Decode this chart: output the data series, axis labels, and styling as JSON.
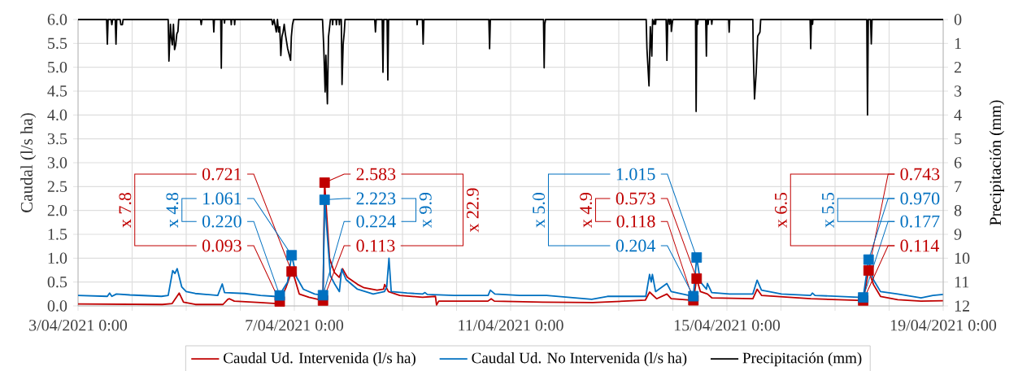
{
  "chart_data": {
    "type": "line",
    "ylabel": "Caudal (l/s ha)",
    "y2label": "Precipitación (mm)",
    "xlim": [
      "2021-04-03",
      "2021-04-19"
    ],
    "xticks": [
      {
        "value": "2021-04-03",
        "label": "3/04/2021 0:00"
      },
      {
        "value": "2021-04-04",
        "label": null
      },
      {
        "value": "2021-04-05",
        "label": null
      },
      {
        "value": "2021-04-06",
        "label": null
      },
      {
        "value": "2021-04-07",
        "label": "7/04/2021 0:00"
      },
      {
        "value": "2021-04-08",
        "label": null
      },
      {
        "value": "2021-04-09",
        "label": null
      },
      {
        "value": "2021-04-10",
        "label": null
      },
      {
        "value": "2021-04-11",
        "label": "11/04/2021 0:00"
      },
      {
        "value": "2021-04-12",
        "label": null
      },
      {
        "value": "2021-04-13",
        "label": null
      },
      {
        "value": "2021-04-14",
        "label": null
      },
      {
        "value": "2021-04-15",
        "label": "15/04/2021 0:00"
      },
      {
        "value": "2021-04-16",
        "label": null
      },
      {
        "value": "2021-04-17",
        "label": null
      },
      {
        "value": "2021-04-18",
        "label": null
      },
      {
        "value": "2021-04-19",
        "label": "19/04/2021 0:00"
      }
    ],
    "ylim": [
      0,
      6
    ],
    "yticks": [
      {
        "value": 0,
        "label": "0.0"
      },
      0.5,
      {
        "value": 1,
        "label": "1.0"
      },
      1.5,
      {
        "value": 2,
        "label": "2.0"
      },
      2.5,
      {
        "value": 3,
        "label": "3.0"
      },
      3.5,
      {
        "value": 4,
        "label": "4.0"
      },
      4.5,
      {
        "value": 5,
        "label": "5.0"
      },
      5.5,
      {
        "value": 6,
        "label": "6.0"
      }
    ],
    "y2lim": [
      12,
      0
    ],
    "y2ticks": [
      0,
      1,
      2,
      3,
      4,
      5,
      6,
      7,
      8,
      9,
      10,
      11,
      12
    ],
    "grid": true,
    "legend": "bottom",
    "annotations": [
      "x 7.8",
      "x 4.8",
      "x 22.9",
      "x 9.9",
      "x 4.9",
      "x 5.0",
      "x 6.5",
      "x 5.5"
    ],
    "series": [
      {
        "name": "Caudal Ud. Intervenida (l/s ha)",
        "color": "#c00000",
        "x": [
          "2021-04-03T00:00",
          "2021-04-04T13:26",
          "2021-04-04T17:46",
          "2021-04-04T20:53",
          "2021-04-04T22:48",
          "2021-04-05T04:05",
          "2021-04-05T16:19",
          "2021-04-05T18:29",
          "2021-04-05T19:12",
          "2021-04-05T21:22",
          "2021-04-06T08:53",
          "2021-04-06T16:05",
          "2021-04-06T17:31",
          "2021-04-06T20:24",
          "2021-04-06T22:48",
          "2021-04-07T00:00",
          "2021-04-07T02:10",
          "2021-04-07T06:29",
          "2021-04-07T12:43",
          "2021-04-07T13:26",
          "2021-04-07T15:36",
          "2021-04-07T17:46",
          "2021-04-07T19:55",
          "2021-04-07T21:22",
          "2021-04-07T23:31",
          "2021-04-08T04:05",
          "2021-04-08T06:58",
          "2021-04-08T12:43",
          "2021-04-08T15:36",
          "2021-04-08T16:05",
          "2021-04-08T17:46",
          "2021-04-08T22:48",
          "2021-04-09T08:53",
          "2021-04-09T14:38",
          "2021-04-09T15:07",
          "2021-04-09T16:05",
          "2021-04-09T23:17",
          "2021-04-10T13:55",
          "2021-04-10T15:22",
          "2021-04-10T16:48",
          "2021-04-11T14:10",
          "2021-04-12T12:29",
          "2021-04-13T11:46",
          "2021-04-13T13:41",
          "2021-04-13T16:48",
          "2021-04-13T21:22",
          "2021-04-13T23:17",
          "2021-04-14T09:07",
          "2021-04-14T10:34",
          "2021-04-14T12:14",
          "2021-04-14T15:22",
          "2021-04-14T17:17",
          "2021-04-15T11:31",
          "2021-04-15T13:26",
          "2021-04-15T15:22",
          "2021-04-16T13:12",
          "2021-04-17T12:29",
          "2021-04-17T14:53",
          "2021-04-17T17:02",
          "2021-04-17T20:10",
          "2021-04-18T03:50",
          "2021-04-18T14:10",
          "2021-04-19T00:00"
        ],
        "values": [
          0.04,
          0.03,
          0.05,
          0.27,
          0.08,
          0.03,
          0.03,
          0.14,
          0.15,
          0.1,
          0.07,
          0.05,
          0.093,
          0.4,
          0.721,
          0.6,
          0.25,
          0.18,
          0.113,
          2.583,
          1.0,
          0.7,
          0.6,
          0.78,
          0.6,
          0.45,
          0.38,
          0.33,
          0.35,
          0.45,
          0.3,
          0.22,
          0.18,
          0.2,
          0.02,
          0.1,
          0.1,
          0.1,
          0.15,
          0.1,
          0.08,
          0.07,
          0.12,
          0.29,
          0.15,
          0.25,
          0.15,
          0.118,
          0.573,
          0.3,
          0.25,
          0.17,
          0.15,
          0.35,
          0.22,
          0.15,
          0.114,
          0.743,
          0.45,
          0.2,
          0.13,
          0.1,
          0.11
        ]
      },
      {
        "name": "Caudal Ud. No Intervenida (l/s ha)",
        "color": "#0070c0",
        "x": [
          "2021-04-03T00:00",
          "2021-04-03T13:00",
          "2021-04-03T14:00",
          "2021-04-03T15:00",
          "2021-04-03T17:00",
          "2021-04-03T23:00",
          "2021-04-04T13:00",
          "2021-04-04T16:00",
          "2021-04-04T18:00",
          "2021-04-04T19:00",
          "2021-04-04T20:00",
          "2021-04-04T22:00",
          "2021-04-05T00:00",
          "2021-04-05T04:00",
          "2021-04-05T14:00",
          "2021-04-05T16:00",
          "2021-04-05T17:00",
          "2021-04-06T02:00",
          "2021-04-06T09:00",
          "2021-04-06T15:00",
          "2021-04-06T17:31",
          "2021-04-06T19:00",
          "2021-04-06T21:00",
          "2021-04-06T22:48",
          "2021-04-07T01:00",
          "2021-04-07T04:00",
          "2021-04-07T09:00",
          "2021-04-07T12:43",
          "2021-04-07T13:26",
          "2021-04-07T16:00",
          "2021-04-07T18:00",
          "2021-04-07T20:00",
          "2021-04-07T21:00",
          "2021-04-07T23:00",
          "2021-04-08T04:00",
          "2021-04-08T11:00",
          "2021-04-08T16:00",
          "2021-04-08T17:00",
          "2021-04-08T18:00",
          "2021-04-08T19:00",
          "2021-04-09T02:00",
          "2021-04-09T09:00",
          "2021-04-09T10:00",
          "2021-04-09T11:00",
          "2021-04-09T23:00",
          "2021-04-10T14:00",
          "2021-04-10T15:00",
          "2021-04-10T17:00",
          "2021-04-11T04:00",
          "2021-04-11T16:00",
          "2021-04-12T12:00",
          "2021-04-12T19:00",
          "2021-04-13T12:00",
          "2021-04-13T13:40",
          "2021-04-13T14:25",
          "2021-04-13T14:55",
          "2021-04-13T16:20",
          "2021-04-13T21:20",
          "2021-04-13T23:15",
          "2021-04-14T07:10",
          "2021-04-14T09:07",
          "2021-04-14T10:34",
          "2021-04-14T12:15",
          "2021-04-14T14:55",
          "2021-04-14T15:20",
          "2021-04-14T17:15",
          "2021-04-15T01:10",
          "2021-04-15T11:30",
          "2021-04-15T13:25",
          "2021-04-15T15:20",
          "2021-04-16T00:15",
          "2021-04-16T13:10",
          "2021-04-16T13:55",
          "2021-04-16T15:05",
          "2021-04-17T12:29",
          "2021-04-17T14:53",
          "2021-04-17T17:00",
          "2021-04-17T20:10",
          "2021-04-18T03:50",
          "2021-04-18T14:10",
          "2021-04-18T19:25",
          "2021-04-19T00:00"
        ],
        "values": [
          0.22,
          0.2,
          0.27,
          0.2,
          0.25,
          0.23,
          0.2,
          0.22,
          0.74,
          0.68,
          0.78,
          0.4,
          0.3,
          0.26,
          0.22,
          0.46,
          0.28,
          0.26,
          0.22,
          0.2,
          0.22,
          0.35,
          0.5,
          1.061,
          0.6,
          0.35,
          0.25,
          0.224,
          2.223,
          0.63,
          0.45,
          0.3,
          0.77,
          0.55,
          0.35,
          0.25,
          0.3,
          0.4,
          1.0,
          0.3,
          0.27,
          0.25,
          0.28,
          0.24,
          0.22,
          0.22,
          0.33,
          0.25,
          0.22,
          0.22,
          0.14,
          0.2,
          0.2,
          0.66,
          0.5,
          0.66,
          0.3,
          0.47,
          0.3,
          0.22,
          0.204,
          1.015,
          0.5,
          0.35,
          0.47,
          0.28,
          0.25,
          0.25,
          0.54,
          0.33,
          0.25,
          0.22,
          0.27,
          0.22,
          0.177,
          0.97,
          0.55,
          0.3,
          0.25,
          0.17,
          0.22,
          0.24
        ]
      },
      {
        "name": "Precipitación (mm)",
        "color": "#000000",
        "axis": "y2",
        "x": [
          "2021-04-03T00:00",
          "2021-04-03T12:40",
          "2021-04-03T13:00",
          "2021-04-03T13:20",
          "2021-04-03T14:40",
          "2021-04-03T15:00",
          "2021-04-03T15:20",
          "2021-04-03T16:30",
          "2021-04-03T16:50",
          "2021-04-03T17:10",
          "2021-04-03T18:40",
          "2021-04-03T19:00",
          "2021-04-03T19:40",
          "2021-04-03T20:00",
          "2021-04-04T16:00",
          "2021-04-04T16:20",
          "2021-04-04T17:00",
          "2021-04-04T17:20",
          "2021-04-04T17:50",
          "2021-04-04T18:20",
          "2021-04-04T18:50",
          "2021-04-04T19:20",
          "2021-04-04T19:50",
          "2021-04-04T20:20",
          "2021-04-04T20:40",
          "2021-04-05T06:20",
          "2021-04-05T06:40",
          "2021-04-05T07:00",
          "2021-04-05T12:00",
          "2021-04-05T12:15",
          "2021-04-05T12:30",
          "2021-04-05T15:20",
          "2021-04-05T15:35",
          "2021-04-05T15:50",
          "2021-04-05T16:50",
          "2021-04-05T17:00",
          "2021-04-05T17:10",
          "2021-04-05T19:50",
          "2021-04-05T20:00",
          "2021-04-05T20:10",
          "2021-04-05T21:20",
          "2021-04-05T21:30",
          "2021-04-05T21:40",
          "2021-04-06T14:00",
          "2021-04-06T14:20",
          "2021-04-06T15:00",
          "2021-04-06T16:00",
          "2021-04-06T16:30",
          "2021-04-06T17:00",
          "2021-04-06T17:30",
          "2021-04-06T18:00",
          "2021-04-06T18:30",
          "2021-04-06T19:00",
          "2021-04-06T19:30",
          "2021-04-06T20:00",
          "2021-04-06T21:00",
          "2021-04-06T22:20",
          "2021-04-06T22:40",
          "2021-04-06T23:10",
          "2021-04-06T23:40",
          "2021-04-07T12:30",
          "2021-04-07T13:00",
          "2021-04-07T13:40",
          "2021-04-07T14:00",
          "2021-04-07T14:40",
          "2021-04-07T15:10",
          "2021-04-07T15:40",
          "2021-04-07T16:00",
          "2021-04-07T16:50",
          "2021-04-07T17:00",
          "2021-04-07T17:10",
          "2021-04-07T18:30",
          "2021-04-07T18:40",
          "2021-04-07T18:50",
          "2021-04-07T19:50",
          "2021-04-07T20:00",
          "2021-04-07T20:10",
          "2021-04-07T20:50",
          "2021-04-07T21:10",
          "2021-04-07T21:40",
          "2021-04-07T22:10",
          "2021-04-07T22:30",
          "2021-04-08T11:40",
          "2021-04-08T12:00",
          "2021-04-08T12:20",
          "2021-04-08T15:00",
          "2021-04-08T15:20",
          "2021-04-08T15:40",
          "2021-04-08T17:10",
          "2021-04-08T17:30",
          "2021-04-08T17:50",
          "2021-04-09T06:20",
          "2021-04-09T06:30",
          "2021-04-09T06:40",
          "2021-04-09T08:50",
          "2021-04-09T09:10",
          "2021-04-09T09:30",
          "2021-04-10T14:20",
          "2021-04-10T14:40",
          "2021-04-10T15:00",
          "2021-04-11T14:35",
          "2021-04-11T14:53",
          "2021-04-11T15:10",
          "2021-04-11T15:30",
          "2021-04-13T12:10",
          "2021-04-13T12:30",
          "2021-04-13T13:25",
          "2021-04-13T14:00",
          "2021-04-13T14:40",
          "2021-04-13T15:00",
          "2021-04-13T15:40",
          "2021-04-13T16:00",
          "2021-04-13T16:10",
          "2021-04-13T16:20",
          "2021-04-13T16:30",
          "2021-04-13T21:00",
          "2021-04-13T21:22",
          "2021-04-13T21:45",
          "2021-04-13T22:20",
          "2021-04-13T22:30",
          "2021-04-13T22:50",
          "2021-04-13T23:10",
          "2021-04-13T23:20",
          "2021-04-13T23:40",
          "2021-04-14T00:00",
          "2021-04-14T10:05",
          "2021-04-14T10:20",
          "2021-04-14T10:40",
          "2021-04-14T11:00",
          "2021-04-14T11:15",
          "2021-04-14T14:35",
          "2021-04-14T14:53",
          "2021-04-14T15:10",
          "2021-04-14T15:30",
          "2021-04-14T15:40",
          "2021-04-14T15:50",
          "2021-04-14T17:05",
          "2021-04-14T17:17",
          "2021-04-14T17:30",
          "2021-04-15T00:45",
          "2021-04-15T01:00",
          "2021-04-15T01:15",
          "2021-04-15T11:30",
          "2021-04-15T11:40",
          "2021-04-15T12:15",
          "2021-04-15T13:00",
          "2021-04-15T13:40",
          "2021-04-15T14:40",
          "2021-04-15T15:00",
          "2021-04-16T12:55",
          "2021-04-16T13:12",
          "2021-04-16T13:30",
          "2021-04-16T13:50",
          "2021-04-16T14:00",
          "2021-04-16T14:10",
          "2021-04-17T14:05",
          "2021-04-17T14:24",
          "2021-04-17T14:45",
          "2021-04-17T15:45",
          "2021-04-17T16:05",
          "2021-04-17T16:25",
          "2021-04-19T00:00"
        ],
        "values": [
          0,
          0,
          1.03,
          0,
          0,
          0.22,
          0,
          0,
          1.03,
          0,
          0,
          0.22,
          0.22,
          0,
          0,
          1.74,
          0.2,
          0.72,
          1.06,
          0.2,
          1.26,
          1.06,
          0.6,
          0.5,
          0,
          0,
          0.22,
          0,
          0,
          0.52,
          0,
          0,
          2.04,
          0,
          0,
          0.15,
          0,
          0,
          0.22,
          0,
          0,
          0.22,
          0,
          0,
          0.22,
          0,
          0.52,
          0,
          0.52,
          0.3,
          1.51,
          0.72,
          0.52,
          0.2,
          0.6,
          1.2,
          1.71,
          0.72,
          0.22,
          0,
          0,
          1.03,
          3.03,
          1.5,
          3.53,
          0.72,
          0.3,
          0,
          0,
          0.22,
          0,
          0,
          0.22,
          0,
          0,
          0.22,
          0,
          0,
          2.72,
          1.03,
          0.52,
          0,
          0,
          0.52,
          0,
          0,
          2.21,
          0,
          0,
          2.53,
          0,
          0,
          0.22,
          0,
          0,
          1.03,
          0,
          0,
          1.22,
          0,
          0,
          2.02,
          0.2,
          0,
          0,
          1.22,
          2.78,
          0.3,
          1.53,
          0,
          0.2,
          0,
          0,
          0.2,
          0,
          0,
          1.71,
          0,
          0,
          0.2,
          0,
          0,
          0.5,
          0.2,
          0,
          0,
          3.85,
          0,
          0.2,
          0,
          0,
          1.53,
          0,
          0,
          0.2,
          0,
          0,
          0.2,
          0,
          0,
          0.53,
          0,
          0,
          1.2,
          3.33,
          2.2,
          0.7,
          0.53,
          0,
          0,
          1.22,
          0,
          0,
          0.2,
          0,
          0,
          4.0,
          0,
          0,
          1.02,
          0,
          0
        ]
      },
      {
        "type": "scatter",
        "marker": "square",
        "color": "#c00000",
        "x": [
          "2021-04-06T17:31",
          "2021-04-06T22:48",
          "2021-04-07T12:43",
          "2021-04-07T13:26",
          "2021-04-14T09:07",
          "2021-04-14T10:34",
          "2021-04-17T12:29",
          "2021-04-17T14:53"
        ],
        "values": [
          0.093,
          0.721,
          0.113,
          2.583,
          0.118,
          0.573,
          0.114,
          0.743
        ],
        "value_labels": [
          "0.093",
          "0.721",
          "0.113",
          "2.583",
          "0.118",
          "0.573",
          "0.114",
          "0.743"
        ]
      },
      {
        "type": "scatter",
        "marker": "square",
        "color": "#0070c0",
        "x": [
          "2021-04-06T17:31",
          "2021-04-06T22:48",
          "2021-04-07T12:43",
          "2021-04-07T13:26",
          "2021-04-14T09:07",
          "2021-04-14T10:34",
          "2021-04-17T12:29",
          "2021-04-17T14:53"
        ],
        "values": [
          0.22,
          1.061,
          0.224,
          2.223,
          0.204,
          1.015,
          0.177,
          0.97
        ],
        "value_labels": [
          "0.220",
          "1.061",
          "0.224",
          "2.223",
          "0.204",
          "1.015",
          "0.177",
          "0.970"
        ]
      }
    ]
  }
}
